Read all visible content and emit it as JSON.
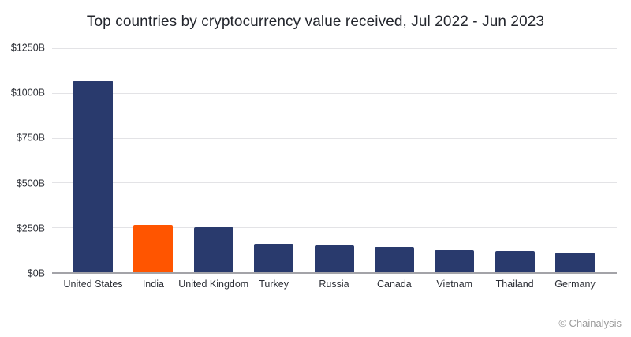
{
  "title": "Top countries by cryptocurrency value received, Jul 2022 - Jun 2023",
  "footer": {
    "attribution": "© Chainalysis"
  },
  "colors": {
    "background": "#ffffff",
    "bar_navy": "#293A6D",
    "bar_highlight_orange": "#FF5500",
    "gridline": "#E3E3E6",
    "axis_line": "#A3A3A8",
    "title_text": "#23262D",
    "tick_text": "#2B2E35",
    "attribution_text": "#9B9B9B"
  },
  "chart_data": {
    "type": "bar",
    "title": "Top countries by cryptocurrency value received, Jul 2022 - Jun 2023",
    "categories": [
      "United States",
      "India",
      "United Kingdom",
      "Turkey",
      "Russia",
      "Canada",
      "Vietnam",
      "Thailand",
      "Germany"
    ],
    "values": [
      1070,
      265,
      250,
      160,
      150,
      140,
      125,
      120,
      110
    ],
    "value_unit": "USD billions",
    "highlight_category": "India",
    "bar_color": "#293A6D",
    "highlight_color": "#FF5500",
    "xlabel": "",
    "ylabel": "",
    "ylim": [
      0,
      1250
    ],
    "yticks": [
      0,
      250,
      500,
      750,
      1000,
      1250
    ],
    "ytick_labels": [
      "$0B",
      "$250B",
      "$500B",
      "$750B",
      "$1000B",
      "$1250B"
    ],
    "grid": true,
    "legend": false,
    "attribution": "© Chainalysis"
  }
}
